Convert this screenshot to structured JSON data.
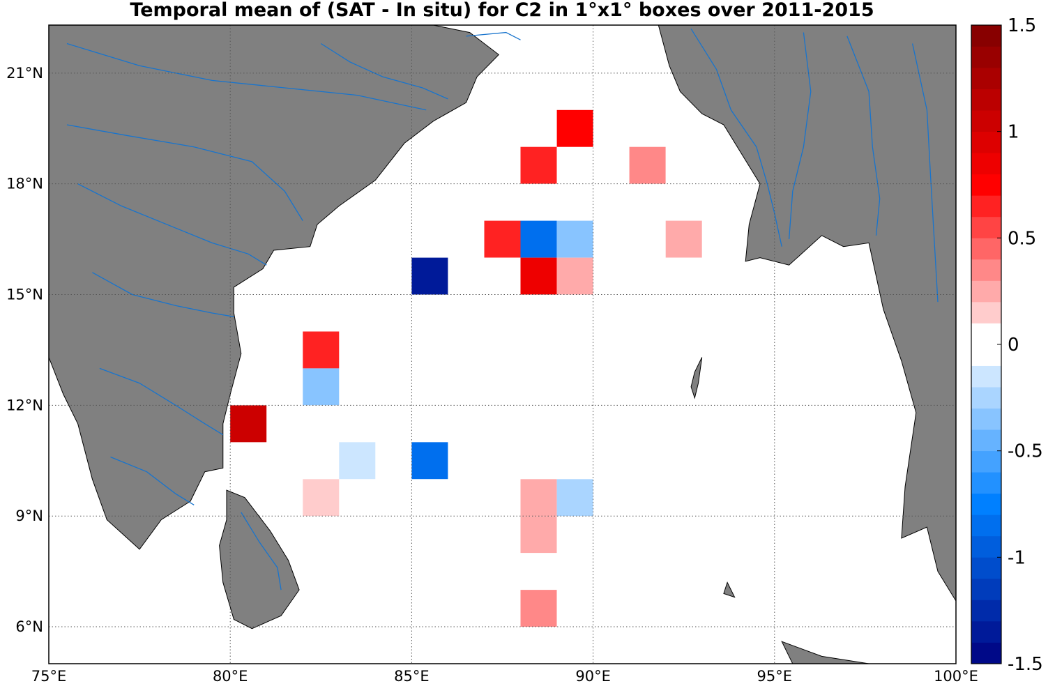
{
  "title": "Temporal mean of (SAT - In situ) for C2 in 1°x1° boxes over 2011-2015",
  "colors": {
    "land": "#808080",
    "coastline": "#000000",
    "rivers": "#1874cd",
    "ocean": "#ffffff",
    "grid": "#555555"
  },
  "chart_data": {
    "type": "heatmap",
    "projection": "equidistant-cylindrical",
    "lon_range": [
      75,
      100
    ],
    "lat_range": [
      5,
      22.3
    ],
    "grid": true,
    "lon_ticks": [
      {
        "value": 75,
        "label": "75°E"
      },
      {
        "value": 80,
        "label": "80°E"
      },
      {
        "value": 85,
        "label": "85°E"
      },
      {
        "value": 90,
        "label": "90°E"
      },
      {
        "value": 95,
        "label": "95°E"
      },
      {
        "value": 100,
        "label": "100°E"
      }
    ],
    "lat_ticks": [
      {
        "value": 6,
        "label": "6°N"
      },
      {
        "value": 9,
        "label": "9°N"
      },
      {
        "value": 12,
        "label": "12°N"
      },
      {
        "value": 15,
        "label": "15°N"
      },
      {
        "value": 18,
        "label": "18°N"
      },
      {
        "value": 21,
        "label": "21°N"
      }
    ],
    "box_size_deg": 1,
    "cells": [
      {
        "lon": 89,
        "lat": 19,
        "value": 0.8
      },
      {
        "lon": 88,
        "lat": 18,
        "value": 0.65
      },
      {
        "lon": 91,
        "lat": 18,
        "value": 0.4
      },
      {
        "lon": 87,
        "lat": 16,
        "value": 0.65
      },
      {
        "lon": 88,
        "lat": 16,
        "value": -0.8
      },
      {
        "lon": 89,
        "lat": 16,
        "value": -0.4
      },
      {
        "lon": 92,
        "lat": 16,
        "value": 0.25
      },
      {
        "lon": 85,
        "lat": 15,
        "value": -1.35
      },
      {
        "lon": 88,
        "lat": 15,
        "value": 0.9
      },
      {
        "lon": 89,
        "lat": 15,
        "value": 0.25
      },
      {
        "lon": 82,
        "lat": 13,
        "value": 0.65
      },
      {
        "lon": 82,
        "lat": 12,
        "value": -0.35
      },
      {
        "lon": 80,
        "lat": 11,
        "value": 1.0
      },
      {
        "lon": 83,
        "lat": 10,
        "value": -0.12
      },
      {
        "lon": 85,
        "lat": 10,
        "value": -0.85
      },
      {
        "lon": 82,
        "lat": 9,
        "value": 0.12
      },
      {
        "lon": 88,
        "lat": 9,
        "value": 0.25
      },
      {
        "lon": 89,
        "lat": 9,
        "value": -0.22
      },
      {
        "lon": 88,
        "lat": 8,
        "value": 0.25
      },
      {
        "lon": 88,
        "lat": 6,
        "value": 0.4
      }
    ],
    "colorbar": {
      "min": -1.5,
      "max": 1.5,
      "levels": 30,
      "tick_values": [
        1.5,
        1,
        0.5,
        0,
        -0.5,
        -1,
        -1.5
      ],
      "tick_labels": [
        "1.5",
        "1",
        "0.5",
        "0",
        "-0.5",
        "-1",
        "-1.5"
      ],
      "cmap_negative_end": "#000080",
      "cmap_mid_blue": "#0080ff",
      "cmap_zero": "#ffffff",
      "cmap_mid_red": "#ff0000",
      "cmap_positive_end": "#800000"
    }
  }
}
